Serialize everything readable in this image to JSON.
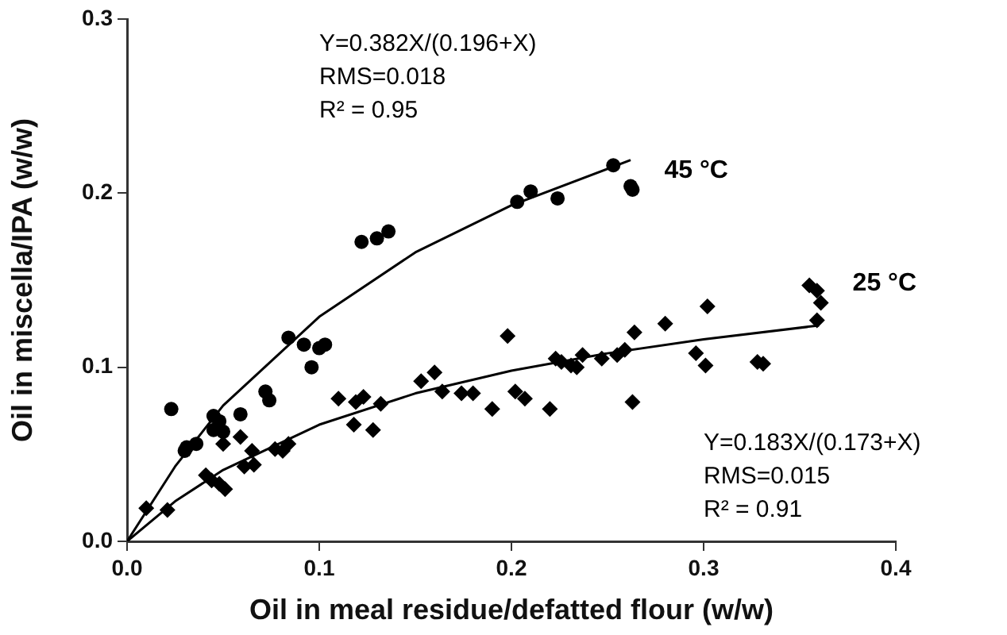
{
  "chart_data": {
    "type": "scatter",
    "xlabel": "Oil in meal residue/defatted flour (w/w)",
    "ylabel": "Oil in miscella/IPA (w/w)",
    "xlim": [
      0,
      0.4
    ],
    "ylim": [
      0,
      0.3
    ],
    "xticks": [
      {
        "value": 0,
        "label": "0.0"
      },
      {
        "value": 0.1,
        "label": "0.1"
      },
      {
        "value": 0.2,
        "label": "0.2"
      },
      {
        "value": 0.3,
        "label": "0.3"
      },
      {
        "value": 0.4,
        "label": "0.4"
      }
    ],
    "yticks": [
      {
        "value": 0,
        "label": "0.0"
      },
      {
        "value": 0.1,
        "label": "0.1"
      },
      {
        "value": 0.2,
        "label": "0.2"
      },
      {
        "value": 0.3,
        "label": "0.3"
      }
    ],
    "grid": false,
    "legend": false,
    "series": [
      {
        "name": "45 °C",
        "type": "scatter",
        "marker": "circle",
        "color": "#000000",
        "x": [
          0.023,
          0.03,
          0.031,
          0.036,
          0.045,
          0.048,
          0.045,
          0.05,
          0.059,
          0.072,
          0.074,
          0.084,
          0.092,
          0.096,
          0.1,
          0.103,
          0.122,
          0.13,
          0.136,
          0.203,
          0.21,
          0.224,
          0.253,
          0.262,
          0.263
        ],
        "values": [
          0.076,
          0.052,
          0.054,
          0.056,
          0.072,
          0.069,
          0.064,
          0.063,
          0.073,
          0.086,
          0.081,
          0.117,
          0.113,
          0.1,
          0.111,
          0.113,
          0.172,
          0.174,
          0.178,
          0.195,
          0.201,
          0.197,
          0.216,
          0.204,
          0.202
        ]
      },
      {
        "name": "25 °C",
        "type": "scatter",
        "marker": "diamond",
        "color": "#000000",
        "x": [
          0.01,
          0.021,
          0.041,
          0.044,
          0.048,
          0.051,
          0.05,
          0.059,
          0.065,
          0.061,
          0.066,
          0.077,
          0.081,
          0.084,
          0.11,
          0.119,
          0.123,
          0.118,
          0.128,
          0.132,
          0.153,
          0.16,
          0.164,
          0.174,
          0.18,
          0.19,
          0.198,
          0.202,
          0.207,
          0.22,
          0.223,
          0.226,
          0.231,
          0.234,
          0.237,
          0.247,
          0.255,
          0.259,
          0.264,
          0.263,
          0.28,
          0.296,
          0.301,
          0.302,
          0.328,
          0.331,
          0.355,
          0.359,
          0.361,
          0.359
        ],
        "values": [
          0.019,
          0.018,
          0.038,
          0.035,
          0.033,
          0.03,
          0.056,
          0.06,
          0.052,
          0.043,
          0.044,
          0.053,
          0.052,
          0.056,
          0.082,
          0.08,
          0.083,
          0.067,
          0.064,
          0.079,
          0.092,
          0.097,
          0.086,
          0.085,
          0.085,
          0.076,
          0.118,
          0.086,
          0.082,
          0.076,
          0.105,
          0.103,
          0.101,
          0.1,
          0.107,
          0.105,
          0.107,
          0.11,
          0.12,
          0.08,
          0.125,
          0.108,
          0.101,
          0.135,
          0.103,
          0.102,
          0.147,
          0.144,
          0.137,
          0.127
        ]
      },
      {
        "type": "line",
        "marker": "none",
        "line_style": "solid",
        "color": "#000000",
        "x": [
          0,
          0.025,
          0.05,
          0.1,
          0.15,
          0.2,
          0.262
        ],
        "values": [
          0,
          0.043,
          0.078,
          0.129,
          0.166,
          0.193,
          0.219
        ]
      },
      {
        "type": "line",
        "marker": "none",
        "line_style": "solid",
        "color": "#000000",
        "x": [
          0,
          0.025,
          0.05,
          0.1,
          0.15,
          0.2,
          0.25,
          0.3,
          0.36
        ],
        "values": [
          0,
          0.023,
          0.041,
          0.067,
          0.085,
          0.098,
          0.108,
          0.116,
          0.124
        ]
      }
    ],
    "annotations": [
      "Y=0.382X/(0.196+X)\nRMS=0.018\nR² = 0.95",
      "Y=0.183X/(0.173+X)\nRMS=0.015\nR² = 0.91"
    ]
  }
}
